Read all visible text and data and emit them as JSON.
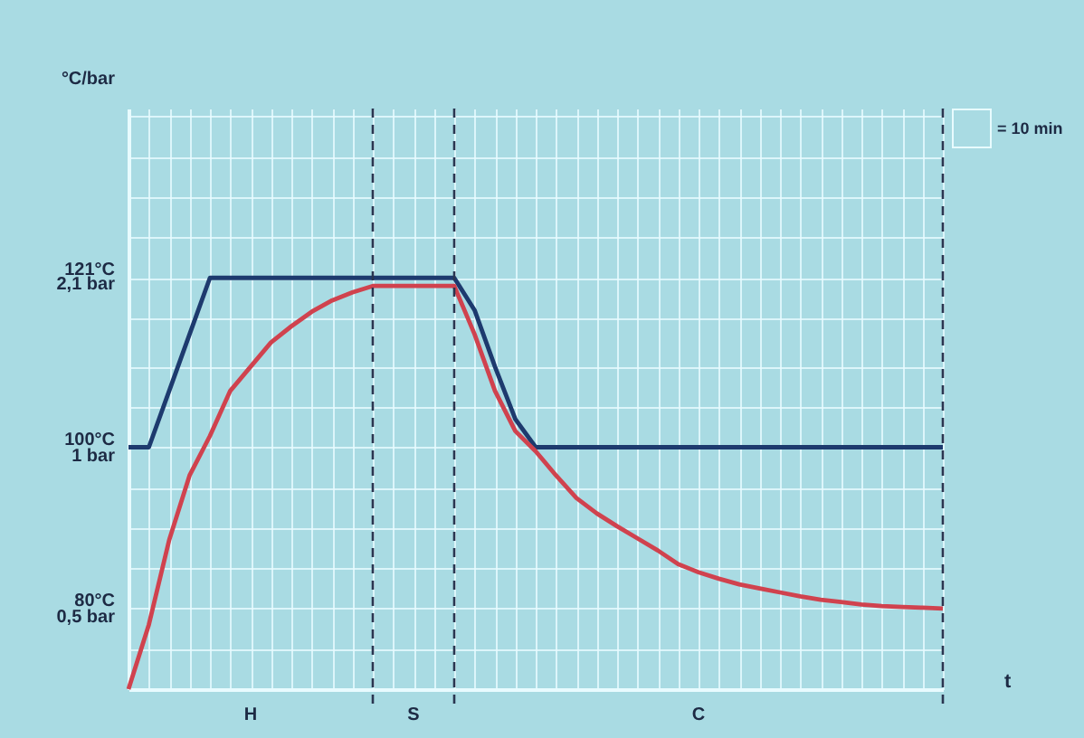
{
  "chart_data": {
    "type": "line",
    "xlabel": "t",
    "ylabel": "°C/bar",
    "categories": [
      null,
      null,
      null,
      null,
      null,
      null,
      null,
      null,
      null,
      null,
      null,
      null,
      null,
      null,
      null,
      null,
      null,
      null,
      null,
      null,
      null,
      null,
      null,
      null,
      null,
      null,
      null,
      null,
      null,
      null,
      null,
      null,
      null,
      null,
      null,
      null,
      null,
      null,
      null,
      null,
      null
    ],
    "ylim": [
      70,
      142
    ],
    "yticks": [
      {
        "value": 75,
        "label": null
      },
      {
        "value": 80,
        "label": "80°C"
      },
      {
        "value": 85,
        "label": null
      },
      {
        "value": 90,
        "label": null
      },
      {
        "value": 95,
        "label": null
      },
      {
        "value": 100,
        "label": "100°C"
      },
      {
        "value": 105,
        "label": null
      },
      {
        "value": 110,
        "label": null
      },
      {
        "value": 116,
        "label": null
      },
      {
        "value": 121,
        "label": "121°C"
      },
      {
        "value": 126,
        "label": null
      },
      {
        "value": 131,
        "label": null
      },
      {
        "value": 136,
        "label": null
      },
      {
        "value": 141,
        "label": null
      }
    ],
    "y2lim": [
      0.35,
      4.3
    ],
    "y2ticks": [
      {
        "value": 0.5,
        "label": "0,5 bar"
      },
      {
        "value": 1,
        "label": "1 bar"
      },
      {
        "value": 2.1,
        "label": "2,1 bar"
      }
    ],
    "log": "y2",
    "grid": true,
    "tick_labels": "y",
    "line_style": "solid",
    "series": [
      {
        "color": "#1d3a6e",
        "values": [
          100,
          100,
          107,
          114,
          121,
          121,
          121,
          121,
          121,
          121,
          121,
          121,
          121,
          121,
          121,
          121,
          121,
          117,
          110,
          103.5,
          100,
          100,
          100,
          100,
          100,
          100,
          100,
          100,
          100,
          100,
          100,
          100,
          100,
          100,
          100,
          100,
          100,
          100,
          100,
          100,
          100
        ]
      },
      {
        "color": "#d0424e",
        "values": [
          70,
          78,
          88.5,
          96.5,
          101.4,
          107,
          110,
          113,
          115,
          116.8,
          118.2,
          119.2,
          120,
          120,
          120,
          120,
          120,
          114,
          107,
          102,
          99.5,
          96.5,
          93.7,
          91.8,
          90.2,
          88.7,
          87.2,
          85.5,
          84.5,
          83.7,
          83,
          82.5,
          82,
          81.5,
          81.1,
          80.8,
          80.5,
          80.3,
          80.2,
          80.1,
          80
        ]
      }
    ],
    "annotations": [
      "H",
      "S",
      "C",
      "= 10 min"
    ]
  }
}
